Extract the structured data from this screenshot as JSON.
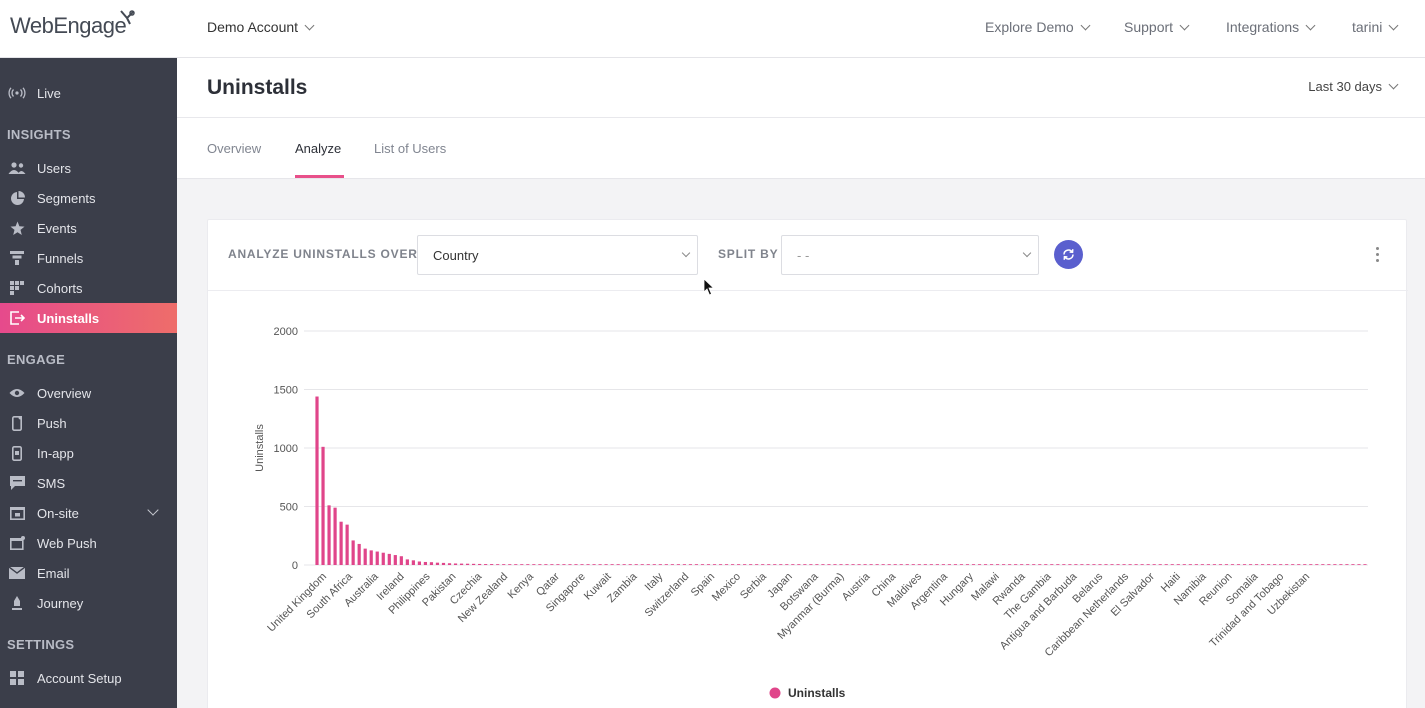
{
  "header": {
    "logo_text": "WebEngage",
    "account": "Demo Account",
    "nav": [
      "Explore Demo",
      "Support",
      "Integrations",
      "tarini"
    ]
  },
  "sidebar": {
    "live": "Live",
    "insights_heading": "INSIGHTS",
    "insights": [
      "Users",
      "Segments",
      "Events",
      "Funnels",
      "Cohorts",
      "Uninstalls"
    ],
    "engage_heading": "ENGAGE",
    "engage": [
      "Overview",
      "Push",
      "In-app",
      "SMS",
      "On-site",
      "Web Push",
      "Email",
      "Journey"
    ],
    "settings_heading": "SETTINGS",
    "settings": [
      "Account Setup"
    ],
    "active_item": "Uninstalls"
  },
  "page": {
    "title": "Uninstalls",
    "date_range": "Last 30 days",
    "tabs": [
      "Overview",
      "Analyze",
      "List of Users"
    ],
    "active_tab": "Analyze"
  },
  "controls": {
    "analyze_label": "ANALYZE UNINSTALLS OVER",
    "analyze_value": "Country",
    "split_label": "SPLIT BY",
    "split_value": "- -"
  },
  "colors": {
    "accent": "#e8508a",
    "sidebar_bg": "#3b3e4a",
    "refresh_button": "#5a5fce",
    "bar": "#e0458a"
  },
  "chart_data": {
    "type": "bar",
    "ylabel": "Uninstalls",
    "ylim": [
      0,
      2000
    ],
    "yticks": [
      0,
      500,
      1000,
      1500,
      2000
    ],
    "grid": true,
    "legend": "bottom-center",
    "series": [
      {
        "name": "Uninstalls"
      }
    ],
    "x_tick_labels": [
      "United Kingdom",
      "South Africa",
      "Australia",
      "Ireland",
      "Philippines",
      "Pakistan",
      "Czechia",
      "New Zealand",
      "Kenya",
      "Qatar",
      "Singapore",
      "Kuwait",
      "Zambia",
      "Italy",
      "Switzerland",
      "Spain",
      "Mexico",
      "Serbia",
      "Japan",
      "Botswana",
      "Myanmar (Burma)",
      "Austria",
      "China",
      "Maldives",
      "Argentina",
      "Hungary",
      "Malawi",
      "Rwanda",
      "The Gambia",
      "Antigua and Barbuda",
      "Belarus",
      "Caribbean Netherlands",
      "El Salvador",
      "Haiti",
      "Namibia",
      "Reunion",
      "Somalia",
      "Trinidad and Tobago",
      "Uzbekistan"
    ],
    "values": [
      1440,
      1010,
      510,
      490,
      370,
      345,
      210,
      180,
      140,
      125,
      115,
      105,
      95,
      85,
      75,
      48,
      40,
      30,
      26,
      24,
      20,
      18,
      15,
      13,
      12,
      11,
      10,
      9,
      8,
      8,
      7,
      7,
      6,
      6,
      6,
      5,
      5,
      5,
      5,
      4,
      4,
      4,
      4,
      4,
      4,
      3,
      3,
      3,
      3,
      3,
      3,
      3,
      3,
      3,
      3,
      3,
      3,
      3,
      3,
      2,
      2,
      2,
      2,
      2,
      2,
      2,
      2,
      2,
      2,
      2,
      2,
      2,
      2,
      2,
      2,
      2,
      2,
      1,
      1,
      1,
      1,
      1,
      1,
      1,
      1,
      1,
      1,
      1,
      1,
      1,
      1,
      1,
      1,
      1,
      1,
      1,
      1,
      1,
      1,
      1,
      1,
      1,
      1,
      1,
      1,
      1,
      1,
      1,
      1,
      1,
      1,
      1,
      1,
      1,
      1,
      1,
      1,
      1,
      1,
      1,
      1,
      1,
      1,
      1,
      1,
      1,
      1,
      1,
      1,
      1,
      1,
      1,
      1,
      1,
      1,
      1,
      1,
      1,
      1,
      1,
      1,
      1,
      1,
      1,
      1,
      1,
      1,
      1,
      1,
      1,
      1,
      1,
      1,
      1,
      1,
      1,
      1,
      1,
      1,
      1,
      1,
      1,
      1,
      1,
      1,
      1,
      1,
      1,
      1,
      1,
      1,
      1,
      1,
      1,
      1
    ]
  }
}
